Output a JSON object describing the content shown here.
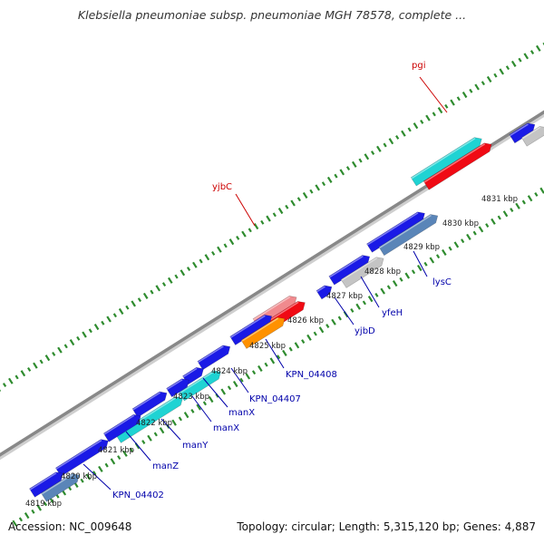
{
  "title": "Klebsiella pneumoniae subsp. pneumoniae MGH 78578, complete ...",
  "footer": {
    "accession": "Accession: NC_009648",
    "summary": "Topology: circular; Length: 5,315,120 bp; Genes: 4,887"
  },
  "colors": {
    "backbone": "#888888",
    "tick": "#2e8b2e",
    "kbp_label": "#222222",
    "gene_label_forward": "#cc0000",
    "gene_label_reverse": "#0000aa",
    "blue": "#1a1ae6",
    "cyan": "#1fd3d3",
    "red": "#f00a14",
    "pink": "#f08a8e",
    "gray": "#c4c4c4",
    "steel": "#5a85b8",
    "orange": "#ff9100"
  },
  "kbp_labels": [
    "4819 kbp",
    "4820 kbp",
    "4821 kbp",
    "4822 kbp",
    "4823 kbp",
    "4824 kbp",
    "4825 kbp",
    "4826 kbp",
    "4827 kbp",
    "4828 kbp",
    "4829 kbp",
    "4830 kbp",
    "4831 kbp"
  ],
  "gene_labels": [
    "pgi",
    "yjbC",
    "lysC",
    "yfeH",
    "yjbD",
    "KPN_04408",
    "KPN_04407",
    "manX",
    "manX",
    "manY",
    "manZ",
    "KPN_04402"
  ]
}
